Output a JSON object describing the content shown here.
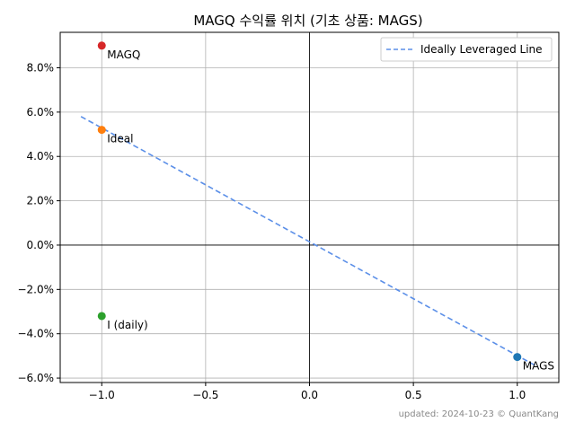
{
  "chart_data": {
    "type": "scatter",
    "title": "MAGQ 수익률 위치 (기초 상품: MAGS)",
    "xlim": [
      -1.2,
      1.2
    ],
    "ylim": [
      -6.2,
      9.6
    ],
    "x_ticks": [
      -1.0,
      -0.5,
      0.0,
      0.5,
      1.0
    ],
    "x_tick_labels": [
      "−1.0",
      "−0.5",
      "0.0",
      "0.5",
      "1.0"
    ],
    "y_ticks": [
      -6,
      -4,
      -2,
      0,
      2,
      4,
      6,
      8
    ],
    "y_tick_labels": [
      "−6.0%",
      "−4.0%",
      "−2.0%",
      "0.0%",
      "2.0%",
      "4.0%",
      "6.0%",
      "8.0%"
    ],
    "grid": true,
    "points": [
      {
        "label": "MAGQ",
        "x": -1.0,
        "y": 9.0,
        "color": "#d62728"
      },
      {
        "label": "Ideal",
        "x": -1.0,
        "y": 5.2,
        "color": "#ff7f0e"
      },
      {
        "label": "I (daily)",
        "x": -1.0,
        "y": -3.2,
        "color": "#2ca02c"
      },
      {
        "label": "MAGS",
        "x": 1.0,
        "y": -5.05,
        "color": "#1f77b4"
      }
    ],
    "line": {
      "name": "Ideally Leveraged Line",
      "x": [
        -1.1,
        1.1
      ],
      "y": [
        5.8,
        -5.5
      ],
      "color": "#5b8fe8",
      "style": "dashed"
    },
    "legend_position": "top-right"
  },
  "footer": "updated: 2024-10-23 © QuantKang"
}
